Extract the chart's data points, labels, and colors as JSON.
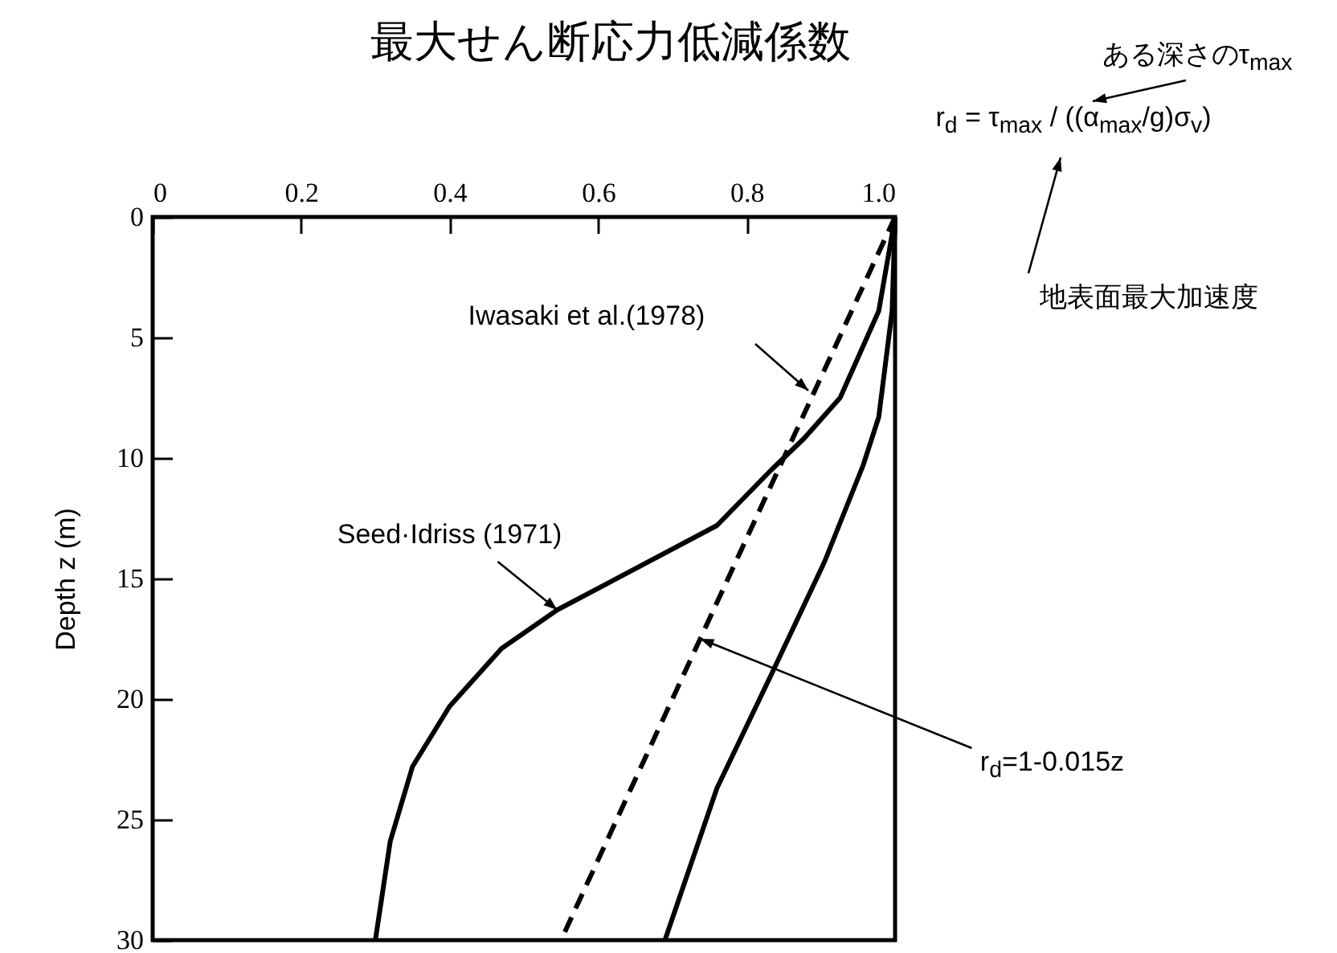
{
  "chart_data": {
    "type": "line",
    "title": "最大せん断応力低減係数",
    "ylabel": "Depth z (m)",
    "xlim": [
      0,
      1
    ],
    "xticks": [
      0,
      0.2,
      0.4,
      0.6,
      0.8,
      {
        "value": 1,
        "label": "1.0"
      }
    ],
    "ylim": [
      30,
      0
    ],
    "yticks": [
      0,
      5,
      10,
      15,
      20,
      25,
      30
    ],
    "grid": false,
    "marker": "none",
    "series": [
      {
        "color": "#000000",
        "line_style": "solid",
        "x": [
          1.0,
          0.978,
          0.926,
          0.877,
          0.833,
          0.76,
          0.545,
          0.47,
          0.4,
          0.35,
          0.32,
          0.3
        ],
        "values": [
          0,
          3.9,
          7.5,
          9.2,
          10.5,
          12.8,
          16.3,
          17.9,
          20.3,
          22.8,
          25.9,
          30
        ]
      },
      {
        "color": "#000000",
        "line_style": "solid",
        "x": [
          1.0,
          0.996,
          0.978,
          0.957,
          0.905,
          0.833,
          0.76,
          0.69
        ],
        "values": [
          0,
          3.9,
          8.3,
          10.3,
          14.3,
          19,
          23.7,
          30
        ]
      },
      {
        "color": "#000000",
        "line_style": "dashed",
        "x": [
          1.0,
          0.55
        ],
        "values": [
          0,
          30
        ]
      }
    ],
    "annotations": [
      "r$_{d}$ = τ$_{max}$ / ((α$_{max}$/g)σ$_{v}$)",
      "ある深さのτ$_{max}$",
      "地表面最大加速度",
      "Iwasaki et al.(1978)",
      {
        "text": "Seed·Idriss (1971)",
        "x": 0.545,
        "y": 16.3
      },
      {
        "text": "r$_{d}$=1-0.015z",
        "x": 0.7375,
        "y": 17.5
      }
    ]
  }
}
